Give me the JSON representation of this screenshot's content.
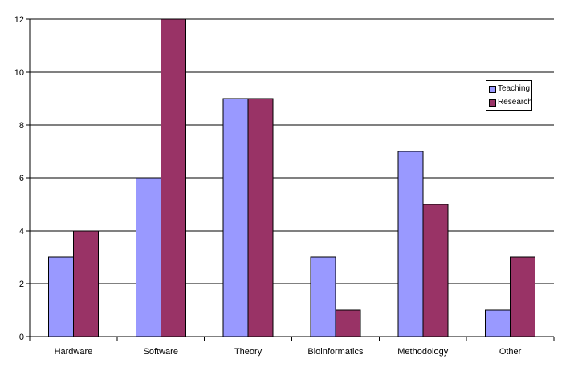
{
  "chart_data": {
    "type": "bar",
    "title": "",
    "xlabel": "",
    "ylabel": "",
    "categories": [
      "Hardware",
      "Software",
      "Theory",
      "Bioinformatics",
      "Methodology",
      "Other"
    ],
    "series": [
      {
        "name": "Teaching",
        "color": "#9999ff",
        "values": [
          3,
          6,
          9,
          3,
          7,
          1
        ]
      },
      {
        "name": "Research",
        "color": "#993366",
        "values": [
          4,
          12,
          9,
          1,
          5,
          3
        ]
      }
    ],
    "ylim": [
      0,
      12
    ],
    "yticks": [
      "0",
      "2",
      "4",
      "6",
      "8",
      "10",
      "12"
    ],
    "grid": true,
    "legend": "right"
  }
}
